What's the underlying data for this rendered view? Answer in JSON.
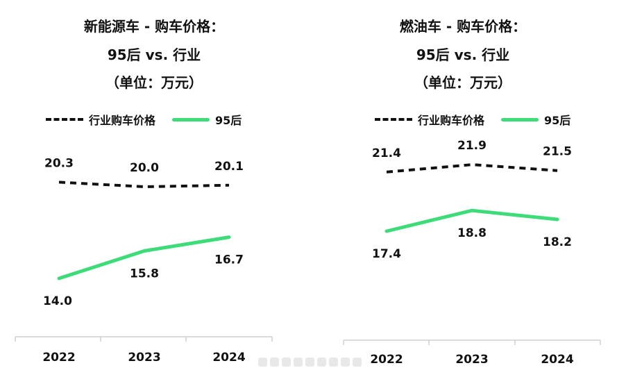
{
  "chart_data": [
    {
      "type": "line",
      "title_lines": [
        "新能源车 - 购车价格：",
        "95后 vs. 行业",
        "（单位：万元）"
      ],
      "categories": [
        "2022",
        "2023",
        "2024"
      ],
      "series": [
        {
          "name": "行业购车价格",
          "values": [
            20.3,
            20.0,
            20.1
          ],
          "value_labels": [
            "20.3",
            "20.0",
            "20.1"
          ],
          "style": "dashed",
          "color": "#111111"
        },
        {
          "name": "95后",
          "values": [
            14.0,
            15.8,
            16.7
          ],
          "value_labels": [
            "14.0",
            "15.8",
            "16.7"
          ],
          "style": "solid",
          "color": "#3ddc78"
        }
      ],
      "legend_position": "top",
      "grid": false
    },
    {
      "type": "line",
      "title_lines": [
        "燃油车 - 购车价格：",
        "95后 vs. 行业",
        "（单位：万元）"
      ],
      "categories": [
        "2022",
        "2023",
        "2024"
      ],
      "series": [
        {
          "name": "行业购车价格",
          "values": [
            21.4,
            21.9,
            21.5
          ],
          "value_labels": [
            "21.4",
            "21.9",
            "21.5"
          ],
          "style": "dashed",
          "color": "#111111"
        },
        {
          "name": "95后",
          "values": [
            17.4,
            18.8,
            18.2
          ],
          "value_labels": [
            "17.4",
            "18.8",
            "18.2"
          ],
          "style": "solid",
          "color": "#3ddc78"
        }
      ],
      "legend_position": "top",
      "grid": false
    }
  ]
}
